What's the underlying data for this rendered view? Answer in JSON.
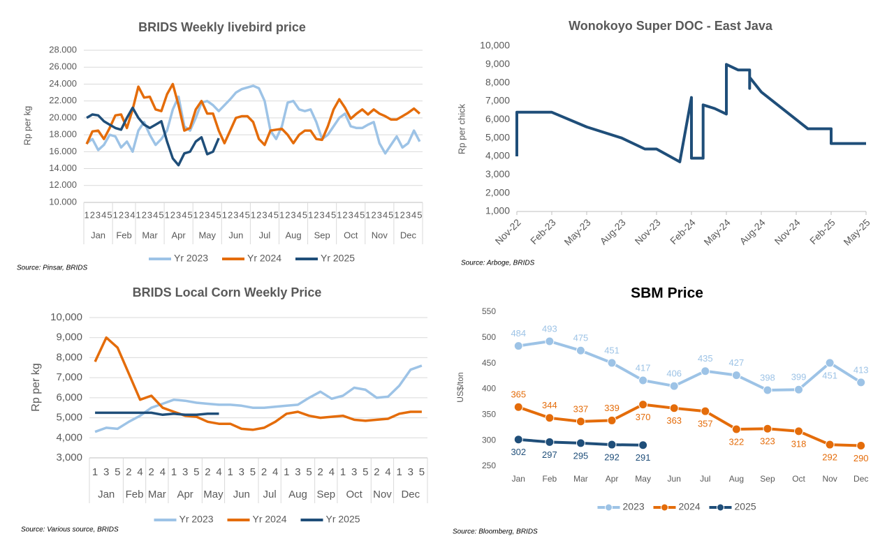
{
  "chart_data": [
    {
      "type": "line",
      "title": "BRIDS Weekly livebird price",
      "ylabel": "Rp per kg",
      "source": "Source: Pinsar, BRIDS",
      "groups": [
        {
          "name": "Jan",
          "weeks": [
            "1",
            "2",
            "3",
            "4",
            "5"
          ]
        },
        {
          "name": "Feb",
          "weeks": [
            "1",
            "2",
            "3",
            "4"
          ]
        },
        {
          "name": "Mar",
          "weeks": [
            "1",
            "2",
            "3",
            "4",
            "5"
          ]
        },
        {
          "name": "Apr",
          "weeks": [
            "1",
            "2",
            "3",
            "4",
            "5"
          ]
        },
        {
          "name": "May",
          "weeks": [
            "1",
            "2",
            "3",
            "4",
            "5"
          ]
        },
        {
          "name": "Jun",
          "weeks": [
            "1",
            "2",
            "3",
            "4",
            "5"
          ]
        },
        {
          "name": "Jul",
          "weeks": [
            "1",
            "2",
            "3",
            "4",
            "5"
          ]
        },
        {
          "name": "Aug",
          "weeks": [
            "1",
            "2",
            "3",
            "4",
            "5"
          ]
        },
        {
          "name": "Sep",
          "weeks": [
            "1",
            "2",
            "3",
            "4",
            "5"
          ]
        },
        {
          "name": "Oct",
          "weeks": [
            "1",
            "2",
            "3",
            "4",
            "5"
          ]
        },
        {
          "name": "Nov",
          "weeks": [
            "1",
            "2",
            "3",
            "4",
            "5"
          ]
        },
        {
          "name": "Dec",
          "weeks": [
            "1",
            "2",
            "3",
            "4",
            "5"
          ]
        }
      ],
      "ylim": [
        10000,
        28000
      ],
      "yticks": [
        {
          "value": 10000,
          "label": "10.000"
        },
        {
          "value": 12000,
          "label": "12.000"
        },
        {
          "value": 14000,
          "label": "14.000"
        },
        {
          "value": 16000,
          "label": "16.000"
        },
        {
          "value": 18000,
          "label": "18.000"
        },
        {
          "value": 20000,
          "label": "20.000"
        },
        {
          "value": 22000,
          "label": "22.000"
        },
        {
          "value": 24000,
          "label": "24.000"
        },
        {
          "value": 26000,
          "label": "26.000"
        },
        {
          "value": 28000,
          "label": "28.000"
        }
      ],
      "grid": true,
      "legend": "bottom",
      "series": [
        {
          "name": "Yr 2023",
          "color": "#9dc3e6",
          "values": [
            17000,
            17500,
            16200,
            16800,
            18000,
            17800,
            16500,
            17200,
            16000,
            18500,
            19500,
            18000,
            16800,
            17500,
            18500,
            21000,
            22500,
            19000,
            18500,
            20000,
            21800,
            22000,
            21500,
            20800,
            21500,
            22200,
            23000,
            23400,
            23600,
            23800,
            23500,
            22000,
            18500,
            17500,
            19000,
            21800,
            22000,
            21000,
            20800,
            21000,
            19500,
            17500,
            18000,
            19000,
            20000,
            20500,
            19000,
            18800,
            18800,
            19200,
            19500,
            17000,
            15800,
            16800,
            17800,
            16500,
            17000,
            18500,
            17200
          ]
        },
        {
          "name": "Yr 2024",
          "color": "#e46c0a",
          "values": [
            16900,
            18400,
            18500,
            17500,
            18800,
            20300,
            20400,
            18800,
            21000,
            23700,
            22400,
            22500,
            21000,
            20800,
            22800,
            24000,
            21500,
            18500,
            18800,
            21000,
            22000,
            20500,
            20500,
            18500,
            17000,
            18500,
            20000,
            20200,
            20200,
            19500,
            17500,
            16800,
            18500,
            18600,
            18700,
            18000,
            17000,
            18000,
            18500,
            18500,
            17500,
            17400,
            19000,
            21000,
            22200,
            21200,
            19900,
            20500,
            21000,
            20400,
            21000,
            20500,
            20200,
            19800,
            19800,
            20200,
            20600,
            21100,
            20500
          ]
        },
        {
          "name": "Yr 2025",
          "color": "#1f4e79",
          "values": [
            20000,
            20400,
            20300,
            19600,
            19200,
            18800,
            18600,
            20000,
            21200,
            20000,
            19200,
            18800,
            19200,
            19600,
            17200,
            15200,
            14400,
            15800,
            16000,
            17200,
            17700,
            15700,
            16000,
            17600,
            null,
            null,
            null,
            null,
            null,
            null,
            null,
            null,
            null,
            null,
            null,
            null,
            null,
            null,
            null,
            null,
            null,
            null,
            null,
            null,
            null,
            null,
            null,
            null,
            null,
            null,
            null,
            null,
            null,
            null,
            null,
            null,
            null,
            null,
            null
          ]
        }
      ]
    },
    {
      "type": "date-line",
      "title": "Wonokoyo Super DOC - East Java",
      "ylabel": "Rp per chick",
      "source": "Source: Arboge, BRIDS",
      "x": [
        "2022-11",
        "2022-11",
        "2023-02",
        "2023-05",
        "2023-08",
        "2023-10",
        "2023-11",
        "2024-01",
        "2024-02",
        "2024-02",
        "2024-03",
        "2024-03",
        "2024-04",
        "2024-04",
        "2024-05",
        "2024-05",
        "2024-06",
        "2024-07",
        "2024-07",
        "2024-07",
        "2024-08",
        "2024-12",
        "2025-02",
        "2025-02",
        "2025-05"
      ],
      "values": [
        4000,
        6400,
        6400,
        5600,
        5000,
        4400,
        4400,
        3700,
        7200,
        3900,
        3900,
        6800,
        6600,
        6600,
        6300,
        9000,
        8700,
        8700,
        7700,
        8300,
        7500,
        5500,
        5500,
        4700,
        4700
      ],
      "color": "#1f4e79",
      "xlim": [
        "2022-11",
        "2025-05"
      ],
      "xticks": [
        {
          "value": "2022-11",
          "label": "Nov-22"
        },
        {
          "value": "2023-02",
          "label": "Feb-23"
        },
        {
          "value": "2023-05",
          "label": "May-23"
        },
        {
          "value": "2023-08",
          "label": "Aug-23"
        },
        {
          "value": "2023-11",
          "label": "Nov-23"
        },
        {
          "value": "2024-02",
          "label": "Feb-24"
        },
        {
          "value": "2024-05",
          "label": "May-24"
        },
        {
          "value": "2024-08",
          "label": "Aug-24"
        },
        {
          "value": "2024-11",
          "label": "Nov-24"
        },
        {
          "value": "2025-02",
          "label": "Feb-25"
        },
        {
          "value": "2025-05",
          "label": "May-25"
        }
      ],
      "ylim": [
        1000,
        10000
      ],
      "yticks": [
        {
          "value": 1000,
          "label": "1,000"
        },
        {
          "value": 2000,
          "label": "2,000"
        },
        {
          "value": 3000,
          "label": "3,000"
        },
        {
          "value": 4000,
          "label": "4,000"
        },
        {
          "value": 5000,
          "label": "5,000"
        },
        {
          "value": 6000,
          "label": "6,000"
        },
        {
          "value": 7000,
          "label": "7,000"
        },
        {
          "value": 8000,
          "label": "8,000"
        },
        {
          "value": 9000,
          "label": "9,000"
        },
        {
          "value": 10000,
          "label": "10,000"
        }
      ],
      "grid": false
    },
    {
      "type": "line",
      "title": "BRIDS Local Corn Weekly Price",
      "ylabel": "Rp per kg",
      "source": "Source: Various source, BRIDS",
      "groups": [
        {
          "name": "Jan",
          "weeks": [
            "1",
            "3",
            "5"
          ]
        },
        {
          "name": "Feb",
          "weeks": [
            "2",
            "4"
          ]
        },
        {
          "name": "Mar",
          "weeks": [
            "2",
            "4"
          ]
        },
        {
          "name": "Apr",
          "weeks": [
            "1",
            "3",
            "5"
          ]
        },
        {
          "name": "May",
          "weeks": [
            "2",
            "4"
          ]
        },
        {
          "name": "Jun",
          "weeks": [
            "1",
            "3",
            "5"
          ]
        },
        {
          "name": "Jul",
          "weeks": [
            "2",
            "4"
          ]
        },
        {
          "name": "Aug",
          "weeks": [
            "1",
            "3",
            "5"
          ]
        },
        {
          "name": "Sep",
          "weeks": [
            "2",
            "4"
          ]
        },
        {
          "name": "Oct",
          "weeks": [
            "1",
            "3",
            "5"
          ]
        },
        {
          "name": "Nov",
          "weeks": [
            "2",
            "4"
          ]
        },
        {
          "name": "Dec",
          "weeks": [
            "1",
            "3",
            "5"
          ]
        }
      ],
      "ylim": [
        3000,
        10000
      ],
      "yticks": [
        {
          "value": 3000,
          "label": "3,000"
        },
        {
          "value": 4000,
          "label": "4,000"
        },
        {
          "value": 5000,
          "label": "5,000"
        },
        {
          "value": 6000,
          "label": "6,000"
        },
        {
          "value": 7000,
          "label": "7,000"
        },
        {
          "value": 8000,
          "label": "8,000"
        },
        {
          "value": 9000,
          "label": "9,000"
        },
        {
          "value": 10000,
          "label": "10,000"
        }
      ],
      "grid": true,
      "legend": "bottom",
      "series": [
        {
          "name": "Yr 2023",
          "color": "#9dc3e6",
          "values": [
            4300,
            4500,
            4450,
            4800,
            5100,
            5500,
            5700,
            5900,
            5850,
            5750,
            5700,
            5650,
            5650,
            5600,
            5500,
            5500,
            5550,
            5600,
            5650,
            6000,
            6300,
            5950,
            6100,
            6500,
            6400,
            6000,
            6050,
            6600,
            7400,
            7600
          ]
        },
        {
          "name": "Yr 2024",
          "color": "#e46c0a",
          "values": [
            7800,
            9000,
            8500,
            7200,
            5900,
            6100,
            5500,
            5300,
            5100,
            5050,
            4800,
            4700,
            4700,
            4450,
            4400,
            4500,
            4800,
            5200,
            5300,
            5100,
            5000,
            5050,
            5100,
            4900,
            4850,
            4900,
            4950,
            5200,
            5300,
            5300
          ]
        },
        {
          "name": "Yr 2025",
          "color": "#1f4e79",
          "values": [
            5250,
            5250,
            5250,
            5250,
            5250,
            5250,
            5150,
            5200,
            5150,
            5150,
            5200,
            5200,
            null,
            null,
            null,
            null,
            null,
            null,
            null,
            null,
            null,
            null,
            null,
            null,
            null,
            null,
            null,
            null,
            null,
            null
          ]
        }
      ]
    },
    {
      "type": "marker-line",
      "title": "SBM Price",
      "ylabel": "US$/ton",
      "source": "Source: Bloomberg, BRIDS",
      "categories": [
        "Jan",
        "Feb",
        "Mar",
        "Apr",
        "May",
        "Jun",
        "Jul",
        "Aug",
        "Sep",
        "Oct",
        "Nov",
        "Dec"
      ],
      "ylim": [
        250,
        550
      ],
      "yticks": [
        250,
        300,
        350,
        400,
        450,
        500,
        550
      ],
      "grid": false,
      "legend": "bottom",
      "series": [
        {
          "name": "2023",
          "color": "#9dc3e6",
          "values": [
            484,
            493,
            475,
            451,
            417,
            406,
            435,
            427,
            398,
            399,
            451,
            413
          ]
        },
        {
          "name": "2024",
          "color": "#e46c0a",
          "values": [
            365,
            344,
            337,
            339,
            370,
            363,
            357,
            322,
            323,
            318,
            292,
            290
          ]
        },
        {
          "name": "2025",
          "color": "#1f4e79",
          "values": [
            302,
            297,
            295,
            292,
            291,
            null,
            null,
            null,
            null,
            null,
            null,
            null
          ]
        }
      ]
    }
  ]
}
